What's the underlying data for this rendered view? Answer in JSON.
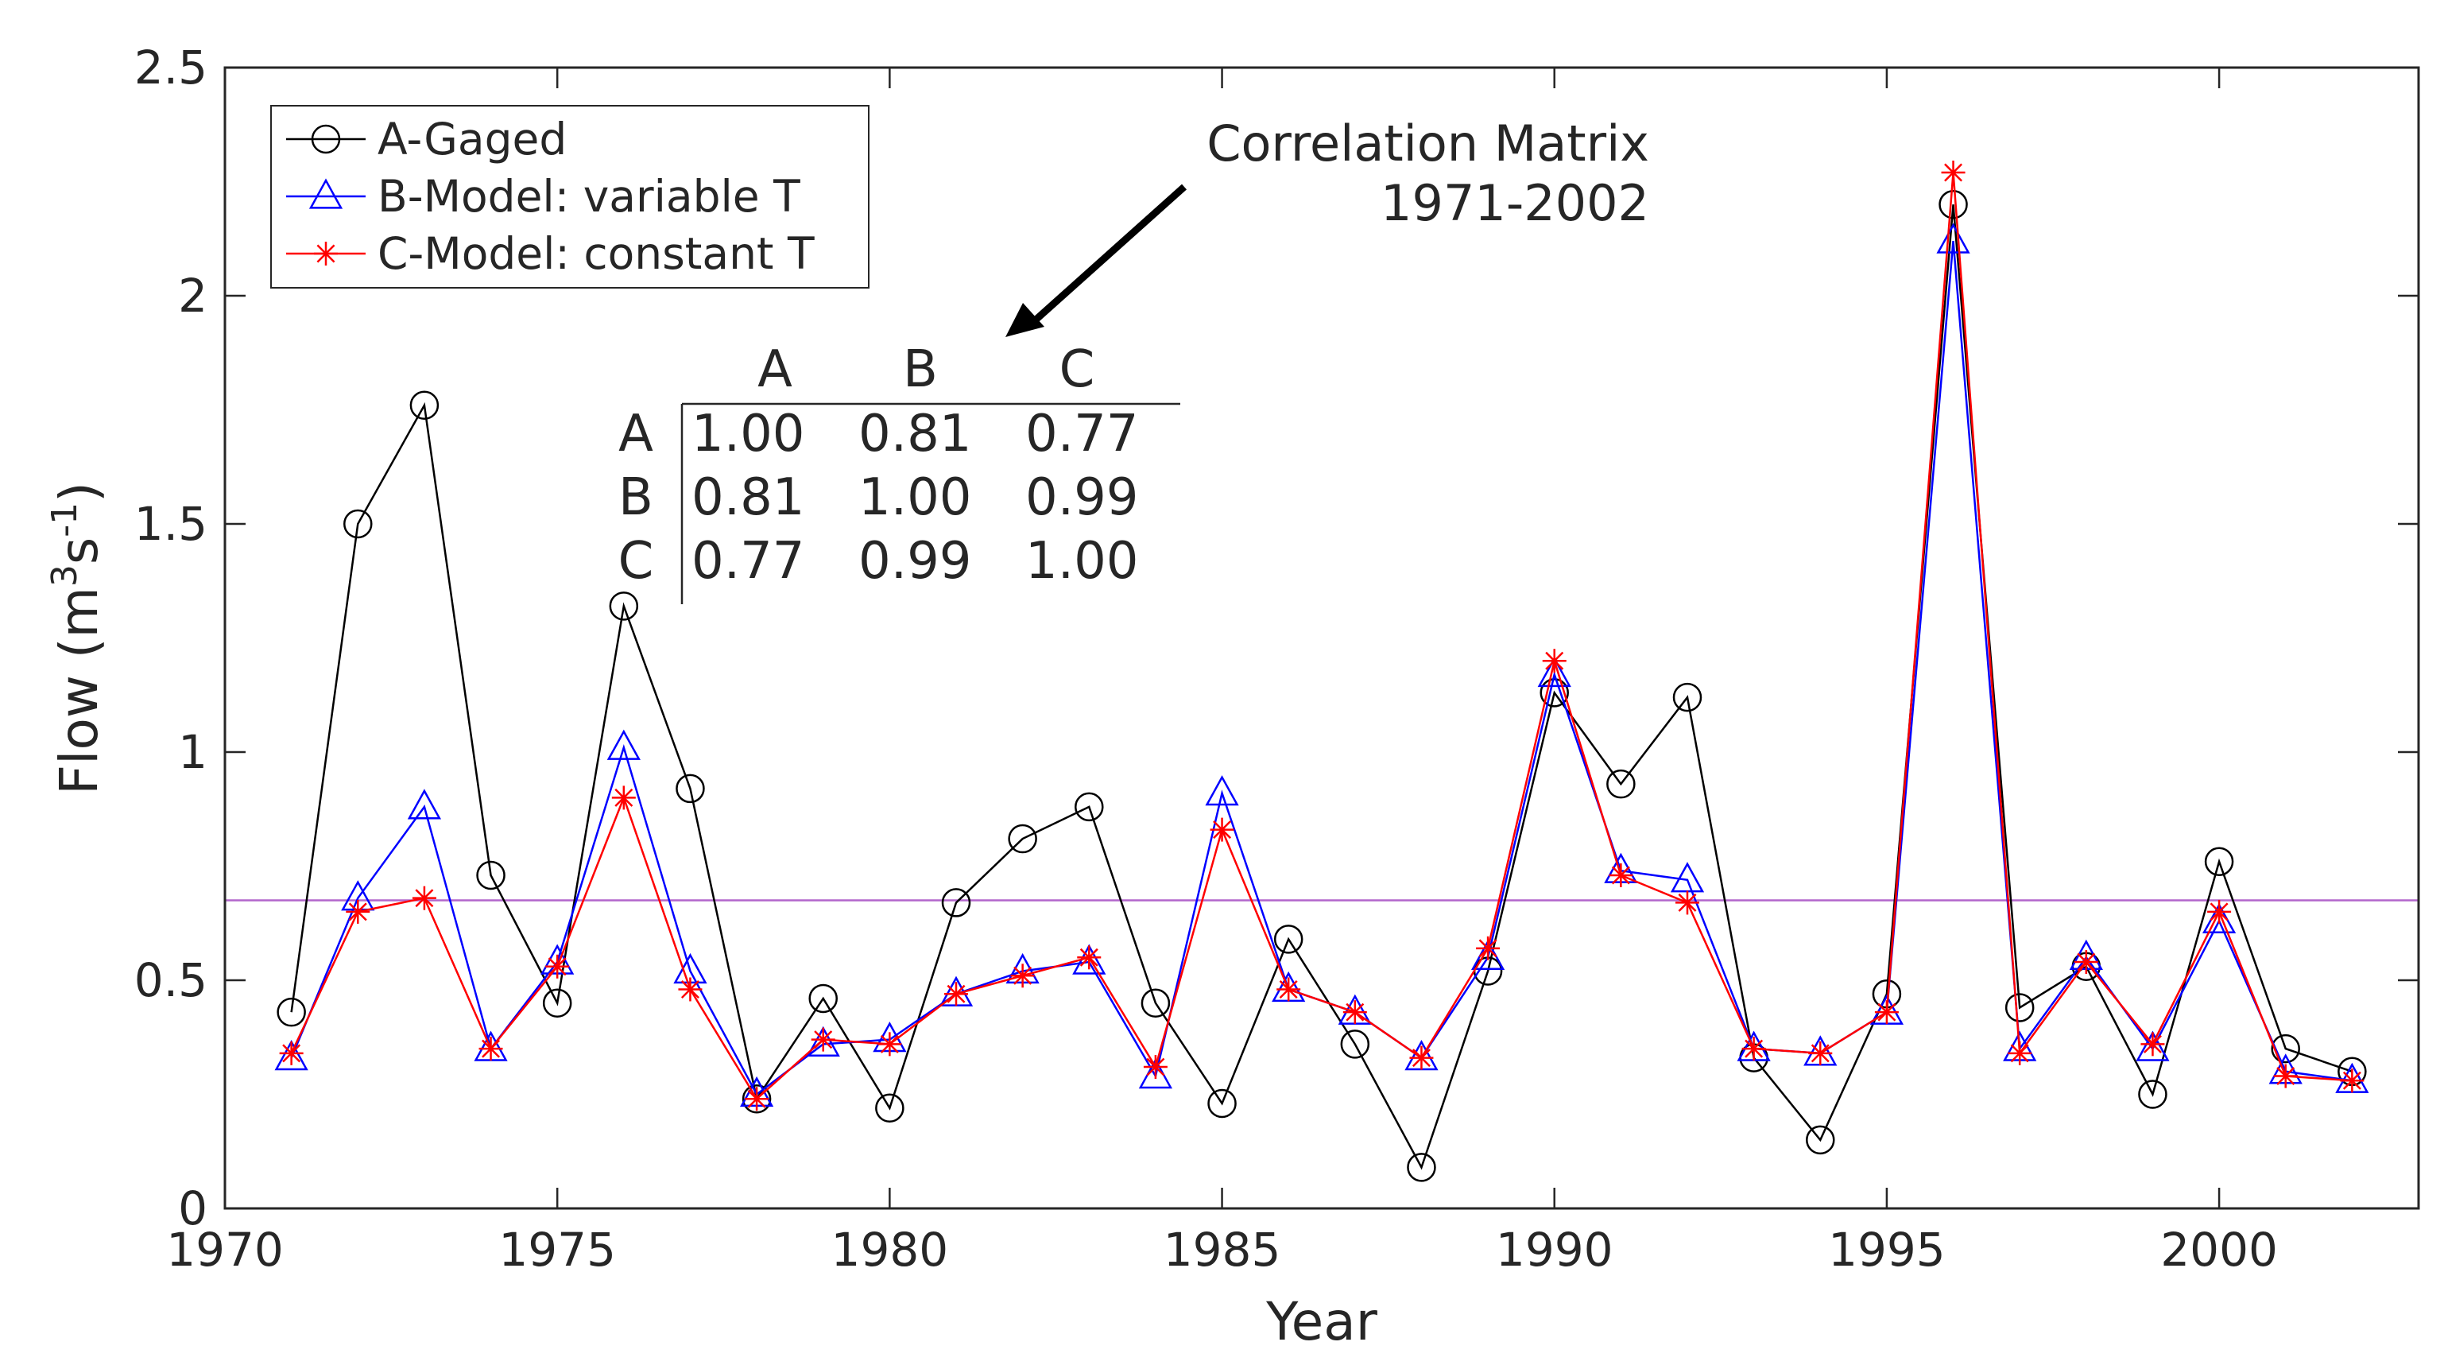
{
  "chart_data": {
    "type": "line",
    "title": "",
    "xlabel": "Year",
    "ylabel": "Flow (m3s-1)",
    "ylabel_parts": {
      "base": "Flow (m",
      "sup1": "3",
      "mid": "s",
      "sup2": "-1",
      "end": ")"
    },
    "xlim": [
      1970,
      2003
    ],
    "ylim": [
      0,
      2.5
    ],
    "x_ticks": [
      1970,
      1975,
      1980,
      1985,
      1990,
      1995,
      2000
    ],
    "x_tick_labels": [
      "1970",
      "1975",
      "1980",
      "1985",
      "1990",
      "1995",
      "2000"
    ],
    "y_ticks": [
      0,
      0.5,
      1,
      1.5,
      2,
      2.5
    ],
    "y_tick_labels": [
      "0",
      "0.5",
      "1",
      "1.5",
      "2",
      "2.5"
    ],
    "legend_position": "top-left",
    "x": [
      1971,
      1972,
      1973,
      1974,
      1975,
      1976,
      1977,
      1978,
      1979,
      1980,
      1981,
      1982,
      1983,
      1984,
      1985,
      1986,
      1987,
      1988,
      1989,
      1990,
      1991,
      1992,
      1993,
      1994,
      1995,
      1996,
      1997,
      1998,
      1999,
      2000,
      2001,
      2002
    ],
    "series": [
      {
        "name": "A-Gaged",
        "color": "#000000",
        "marker": "circle",
        "values": [
          0.43,
          1.5,
          1.76,
          0.73,
          0.45,
          1.32,
          0.92,
          0.24,
          0.46,
          0.22,
          0.67,
          0.81,
          0.88,
          0.45,
          0.23,
          0.59,
          0.36,
          0.09,
          0.52,
          1.13,
          0.93,
          1.12,
          0.33,
          0.15,
          0.47,
          2.2,
          0.44,
          0.53,
          0.25,
          0.76,
          0.35,
          0.3
        ]
      },
      {
        "name": "B-Model: variable T",
        "color": "#0000ff",
        "marker": "triangle",
        "values": [
          0.33,
          0.68,
          0.88,
          0.35,
          0.54,
          1.01,
          0.52,
          0.25,
          0.36,
          0.37,
          0.47,
          0.52,
          0.54,
          0.29,
          0.91,
          0.48,
          0.43,
          0.33,
          0.55,
          1.17,
          0.74,
          0.72,
          0.35,
          0.34,
          0.43,
          2.12,
          0.35,
          0.55,
          0.35,
          0.63,
          0.3,
          0.28
        ]
      },
      {
        "name": "C-Model: constant T",
        "color": "#ff0000",
        "marker": "asterisk",
        "values": [
          0.34,
          0.65,
          0.68,
          0.35,
          0.53,
          0.9,
          0.48,
          0.24,
          0.37,
          0.36,
          0.47,
          0.51,
          0.55,
          0.31,
          0.83,
          0.48,
          0.43,
          0.33,
          0.57,
          1.2,
          0.73,
          0.67,
          0.35,
          0.34,
          0.43,
          2.27,
          0.34,
          0.54,
          0.36,
          0.65,
          0.29,
          0.28
        ]
      }
    ],
    "reference_line": {
      "y": 0.675,
      "color": "#b266cc"
    },
    "annotation": {
      "lines": [
        "Correlation Matrix",
        "1971-2002"
      ],
      "matrix": {
        "columns": [
          "A",
          "B",
          "C"
        ],
        "rows": [
          {
            "label": "A",
            "values": [
              "1.00",
              "0.81",
              "0.77"
            ]
          },
          {
            "label": "B",
            "values": [
              "0.81",
              "1.00",
              "0.99"
            ]
          },
          {
            "label": "C",
            "values": [
              "0.77",
              "0.99",
              "1.00"
            ]
          }
        ]
      }
    }
  }
}
